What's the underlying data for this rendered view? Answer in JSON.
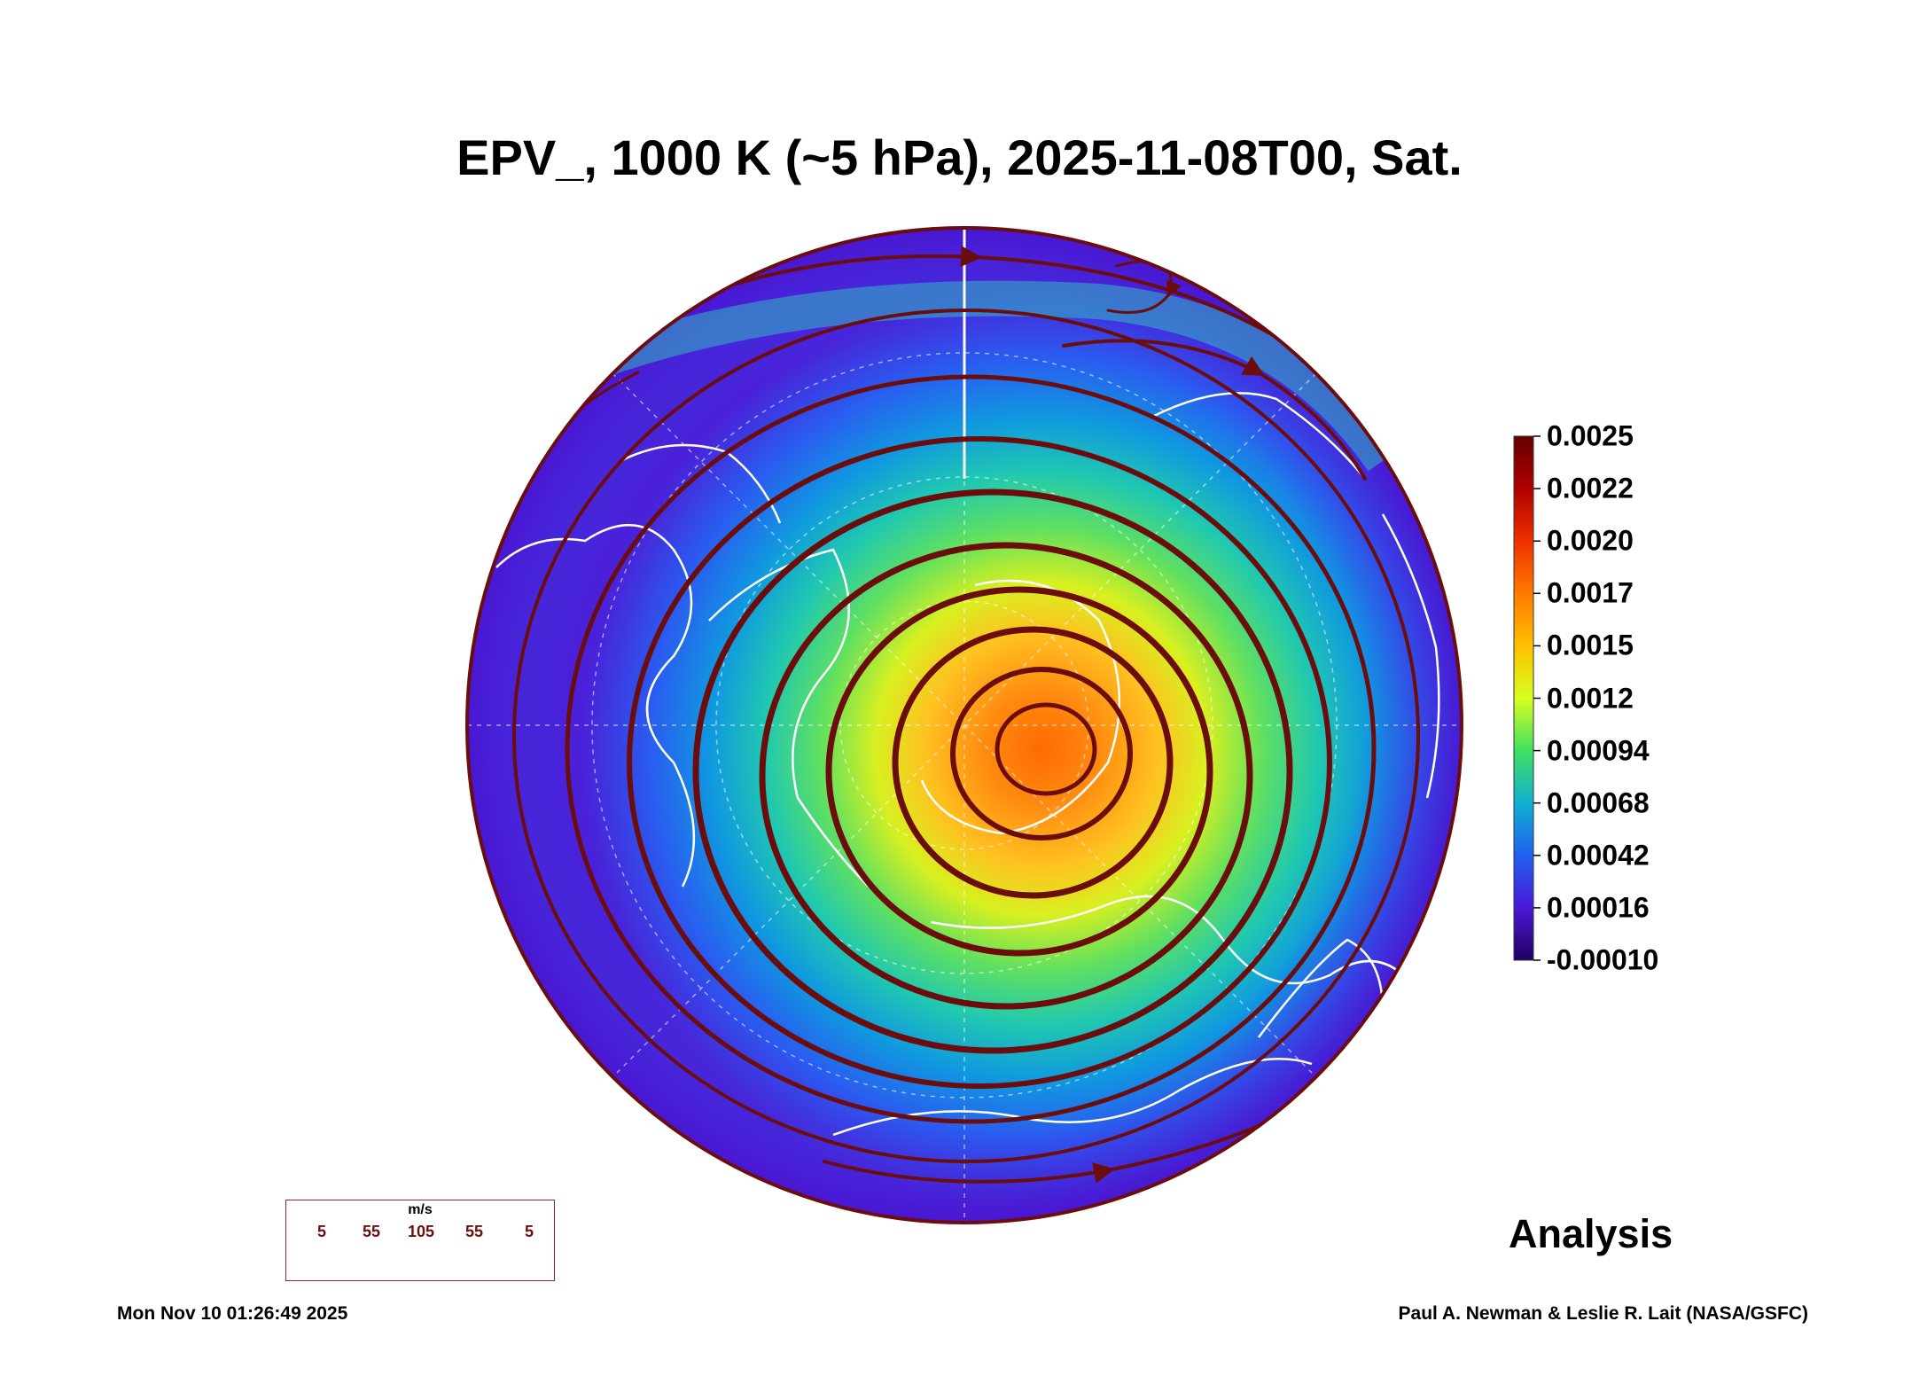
{
  "title": "EPV_, 1000 K (~5 hPa), 2025-11-08T00, Sat.",
  "map": {
    "projection": "north-polar-stereographic",
    "field": "EPV_",
    "overlay": "streamlines",
    "coastline_color": "#ffffff",
    "streamline_color": "#6b0d0d"
  },
  "colorbar": {
    "labels": [
      "0.0025",
      "0.0022",
      "0.0020",
      "0.0017",
      "0.0015",
      "0.0012",
      "0.00094",
      "0.00068",
      "0.00042",
      "0.00016",
      "-0.00010"
    ],
    "colors": [
      "#640000",
      "#b00000",
      "#f03000",
      "#ff7a00",
      "#ffc000",
      "#d8ff20",
      "#40e060",
      "#10b0d0",
      "#2060f0",
      "#4a18d8",
      "#200060"
    ]
  },
  "wind_legend": {
    "unit": "m/s",
    "ticks": [
      "5",
      "55",
      "105",
      "55",
      "5"
    ]
  },
  "analysis_label": "Analysis",
  "timestamp": "Mon Nov 10 01:26:49 2025",
  "credits": "Paul A. Newman & Leslie R. Lait (NASA/GSFC)"
}
